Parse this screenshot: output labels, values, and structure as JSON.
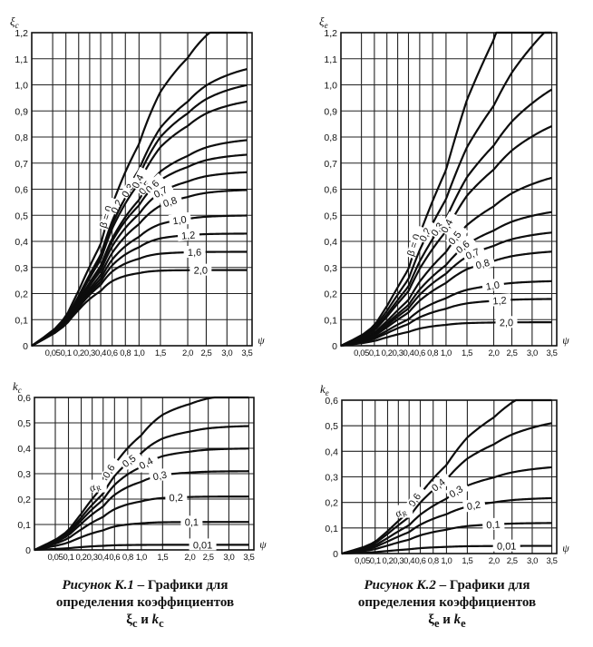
{
  "chart_data": [
    {
      "type": "line",
      "ylabel": "ξc",
      "xlabel": "ψ",
      "x_ticks": [
        "0,05",
        "0,1",
        "0,2",
        "0,3",
        "0,4",
        "0,6",
        "0,8",
        "1,0",
        "1,5",
        "2,0",
        "2,5",
        "3,0",
        "3,5"
      ],
      "y_ticks": [
        "0",
        "0,1",
        "0,2",
        "0,3",
        "0,4",
        "0,5",
        "0,6",
        "0,7",
        "0,8",
        "0,9",
        "1,0",
        "1,1",
        "1,2"
      ],
      "ylim": [
        0,
        1.2
      ],
      "xlim": [
        0,
        3.5
      ],
      "grid": true,
      "series": [
        {
          "name": "β = 0",
          "asymptote": 1.35,
          "c": 0.85,
          "values_at_ticks": [
            0.38,
            0.48,
            0.68,
            0.79,
            0.88,
            1.0,
            1.08,
            1.12,
            1.18
          ]
        },
        {
          "name": "0,2",
          "asymptote": 1.1,
          "c": 0.95,
          "values_at_ticks": [
            0.36,
            0.45,
            0.62,
            0.73,
            0.81,
            0.91,
            0.97,
            1.01,
            1.05
          ]
        },
        {
          "name": "0,3",
          "asymptote": 1.03,
          "c": 1.0,
          "values_at_ticks": [
            0.35,
            0.44,
            0.6,
            0.7,
            0.77,
            0.87,
            0.93,
            0.96,
            0.99
          ]
        },
        {
          "name": "0,4",
          "asymptote": 0.96,
          "c": 1.05,
          "values_at_ticks": [
            0.34,
            0.43,
            0.58,
            0.67,
            0.74,
            0.83,
            0.88,
            0.91,
            0.94
          ]
        },
        {
          "name": "0,5",
          "asymptote": 0.8,
          "c": 1.2,
          "values_at_ticks": [
            0.33,
            0.41,
            0.54,
            0.61,
            0.67,
            0.73,
            0.76,
            0.78,
            0.8
          ]
        },
        {
          "name": "0,6",
          "asymptote": 0.74,
          "c": 1.3,
          "values_at_ticks": [
            0.32,
            0.4,
            0.52,
            0.58,
            0.63,
            0.68,
            0.71,
            0.72,
            0.73
          ]
        },
        {
          "name": "0,7",
          "asymptote": 0.67,
          "c": 1.4,
          "values_at_ticks": [
            0.32,
            0.39,
            0.49,
            0.55,
            0.59,
            0.63,
            0.65,
            0.66,
            0.67
          ]
        },
        {
          "name": "0,8",
          "asymptote": 0.6,
          "c": 1.5,
          "values_at_ticks": [
            0.31,
            0.37,
            0.46,
            0.51,
            0.54,
            0.57,
            0.59,
            0.59,
            0.6
          ]
        },
        {
          "name": "1,0",
          "asymptote": 0.5,
          "c": 1.8,
          "values_at_ticks": [
            0.3,
            0.36,
            0.42,
            0.45,
            0.47,
            0.49,
            0.5,
            0.5,
            0.5
          ]
        },
        {
          "name": "1,2",
          "asymptote": 0.43,
          "c": 2.1,
          "values_at_ticks": [
            0.29,
            0.34,
            0.39,
            0.41,
            0.42,
            0.43,
            0.43,
            0.43,
            0.43
          ]
        },
        {
          "name": "1,6",
          "asymptote": 0.36,
          "c": 2.6,
          "values_at_ticks": [
            0.27,
            0.31,
            0.34,
            0.35,
            0.36,
            0.36,
            0.36,
            0.36,
            0.36
          ]
        },
        {
          "name": "2,0",
          "asymptote": 0.29,
          "c": 3.2,
          "values_at_ticks": [
            0.25,
            0.27,
            0.28,
            0.29,
            0.29,
            0.29,
            0.29,
            0.29,
            0.29
          ]
        }
      ]
    },
    {
      "type": "line",
      "ylabel": "ξe",
      "xlabel": "ψ",
      "x_ticks": [
        "0,05",
        "0,1",
        "0,2",
        "0,3",
        "0,4",
        "0,6",
        "0,8",
        "1,0",
        "1,5",
        "2,0",
        "2,5",
        "3,0",
        "3,5"
      ],
      "y_ticks": [
        "0",
        "0,1",
        "0,2",
        "0,3",
        "0,4",
        "0,5",
        "0,6",
        "0,7",
        "0,8",
        "0,9",
        "1,0",
        "1,1",
        "1,2"
      ],
      "ylim": [
        0,
        1.2
      ],
      "xlim": [
        0,
        3.5
      ],
      "grid": true,
      "series": [
        {
          "name": "β = 0",
          "asymptote": 2.6,
          "c": 0.3,
          "values_at_ticks": [
            0.22,
            0.33,
            0.48,
            0.6,
            0.71,
            0.84,
            0.95,
            1.04,
            1.13
          ]
        },
        {
          "name": "0,2",
          "asymptote": 1.55,
          "c": 0.45,
          "values_at_ticks": [
            0.2,
            0.3,
            0.42,
            0.52,
            0.61,
            0.7,
            0.78,
            0.85,
            0.92
          ]
        },
        {
          "name": "0,3",
          "asymptote": 1.15,
          "c": 0.55,
          "values_at_ticks": [
            0.19,
            0.28,
            0.39,
            0.47,
            0.53,
            0.6,
            0.66,
            0.7,
            0.75
          ]
        },
        {
          "name": "0,4",
          "asymptote": 0.95,
          "c": 0.62,
          "values_at_ticks": [
            0.18,
            0.26,
            0.35,
            0.42,
            0.47,
            0.53,
            0.57,
            0.61,
            0.65
          ]
        },
        {
          "name": "0,5",
          "asymptote": 0.7,
          "c": 0.72,
          "values_at_ticks": [
            0.16,
            0.23,
            0.3,
            0.36,
            0.4,
            0.44,
            0.47,
            0.49,
            0.51
          ]
        },
        {
          "name": "0,6",
          "asymptote": 0.54,
          "c": 0.85,
          "values_at_ticks": [
            0.15,
            0.21,
            0.27,
            0.31,
            0.34,
            0.37,
            0.39,
            0.4,
            0.41
          ]
        },
        {
          "name": "0,7",
          "asymptote": 0.45,
          "c": 0.95,
          "values_at_ticks": [
            0.14,
            0.19,
            0.24,
            0.28,
            0.3,
            0.33,
            0.34,
            0.35,
            0.36
          ]
        },
        {
          "name": "0,8",
          "asymptote": 0.37,
          "c": 1.05,
          "values_at_ticks": [
            0.13,
            0.17,
            0.22,
            0.24,
            0.26,
            0.28,
            0.29,
            0.29,
            0.3
          ]
        },
        {
          "name": "1,0",
          "asymptote": 0.25,
          "c": 1.3,
          "values_at_ticks": [
            0.11,
            0.14,
            0.17,
            0.19,
            0.2,
            0.21,
            0.21,
            0.21,
            0.21
          ]
        },
        {
          "name": "1,2",
          "asymptote": 0.18,
          "c": 1.55,
          "values_at_ticks": [
            0.09,
            0.11,
            0.13,
            0.14,
            0.14,
            0.15,
            0.15,
            0.15,
            0.15
          ]
        },
        {
          "name": "2,0",
          "asymptote": 0.09,
          "c": 2.2,
          "values_at_ticks": [
            0.06,
            0.07,
            0.08,
            0.08,
            0.08,
            0.08,
            0.08,
            0.08,
            0.08
          ]
        }
      ]
    },
    {
      "type": "line",
      "ylabel": "kc",
      "xlabel": "ψ",
      "x_ticks": [
        "0,05",
        "0,1",
        "0,2",
        "0,3",
        "0,4",
        "0,6",
        "0,8",
        "1,0",
        "1,5",
        "2,0",
        "2,5",
        "3,0",
        "3,5"
      ],
      "y_ticks": [
        "0",
        "0,1",
        "0,2",
        "0,3",
        "0,4",
        "0,5",
        "0,6"
      ],
      "ylim": [
        0,
        0.6
      ],
      "xlim": [
        0,
        3.5
      ],
      "grid": true,
      "series_label": "αR",
      "series": [
        {
          "name": "0,6",
          "asymptote": 0.62,
          "c": 1.3,
          "values_at_ticks": [
            0.26,
            0.34,
            0.44,
            0.5,
            0.54,
            0.58,
            0.6,
            0.61,
            0.62
          ]
        },
        {
          "name": "0,5",
          "asymptote": 0.49,
          "c": 1.5,
          "values_at_ticks": [
            0.22,
            0.29,
            0.37,
            0.42,
            0.45,
            0.47,
            0.48,
            0.49,
            0.49
          ]
        },
        {
          "name": "0,4",
          "asymptote": 0.4,
          "c": 1.7,
          "values_at_ticks": [
            0.19,
            0.25,
            0.31,
            0.35,
            0.37,
            0.39,
            0.4,
            0.4,
            0.4
          ]
        },
        {
          "name": "0,3",
          "asymptote": 0.31,
          "c": 2.0,
          "values_at_ticks": [
            0.16,
            0.2,
            0.25,
            0.28,
            0.29,
            0.3,
            0.31,
            0.31,
            0.31
          ]
        },
        {
          "name": "0,2",
          "asymptote": 0.21,
          "c": 2.4,
          "values_at_ticks": [
            0.12,
            0.15,
            0.18,
            0.2,
            0.2,
            0.21,
            0.21,
            0.21,
            0.21
          ]
        },
        {
          "name": "0,1",
          "asymptote": 0.11,
          "c": 3.0,
          "values_at_ticks": [
            0.07,
            0.09,
            0.1,
            0.11,
            0.11,
            0.11,
            0.11,
            0.11,
            0.11
          ]
        },
        {
          "name": "0,01",
          "asymptote": 0.02,
          "c": 4.0,
          "values_at_ticks": [
            0.02,
            0.02,
            0.02,
            0.02,
            0.02,
            0.02,
            0.02,
            0.02,
            0.02
          ]
        }
      ]
    },
    {
      "type": "line",
      "ylabel": "ke",
      "xlabel": "ψ",
      "x_ticks": [
        "0,05",
        "0,1",
        "0,2",
        "0,3",
        "0,4",
        "0,6",
        "0,8",
        "1,0",
        "1,5",
        "2,0",
        "2,5",
        "3,0",
        "3,5"
      ],
      "y_ticks": [
        "0",
        "0,1",
        "0,2",
        "0,3",
        "0,4",
        "0,5",
        "0,6"
      ],
      "ylim": [
        0,
        0.6
      ],
      "xlim": [
        0,
        3.5
      ],
      "grid": true,
      "series_label": "αR",
      "series": [
        {
          "name": "0,6",
          "asymptote": 0.75,
          "c": 0.62,
          "values_at_ticks": [
            0.2,
            0.28,
            0.37,
            0.43,
            0.48,
            0.53,
            0.56,
            0.58,
            0.6
          ]
        },
        {
          "name": "0,4",
          "asymptote": 0.55,
          "c": 0.75,
          "values_at_ticks": [
            0.16,
            0.22,
            0.29,
            0.34,
            0.38,
            0.41,
            0.43,
            0.44,
            0.45
          ]
        },
        {
          "name": "0,3",
          "asymptote": 0.35,
          "c": 0.95,
          "values_at_ticks": [
            0.12,
            0.16,
            0.21,
            0.24,
            0.26,
            0.28,
            0.29,
            0.3,
            0.3
          ]
        },
        {
          "name": "0,2",
          "asymptote": 0.22,
          "c": 1.2,
          "values_at_ticks": [
            0.08,
            0.11,
            0.15,
            0.17,
            0.18,
            0.2,
            0.2,
            0.21,
            0.21
          ]
        },
        {
          "name": "0,1",
          "asymptote": 0.12,
          "c": 1.5,
          "values_at_ticks": [
            0.05,
            0.07,
            0.09,
            0.1,
            0.11,
            0.11,
            0.11,
            0.11,
            0.12
          ]
        },
        {
          "name": "0,01",
          "asymptote": 0.03,
          "c": 2.0,
          "values_at_ticks": [
            0.02,
            0.02,
            0.02,
            0.02,
            0.02,
            0.02,
            0.02,
            0.02,
            0.02
          ]
        }
      ]
    }
  ],
  "captions": [
    {
      "fig": "Рисунок К.1",
      "dash": " – ",
      "text1": "Графики для",
      "text2": "определения коэффициентов",
      "sym_a": "ξ",
      "sub_a": "c",
      "and": " и ",
      "sym_b": "k",
      "sub_b": "c"
    },
    {
      "fig": "Рисунок К.2",
      "dash": " – ",
      "text1": "Графики для",
      "text2": "определения коэффициентов",
      "sym_a": "ξ",
      "sub_a": "e",
      "and": " и ",
      "sym_b": "k",
      "sub_b": "e"
    }
  ]
}
